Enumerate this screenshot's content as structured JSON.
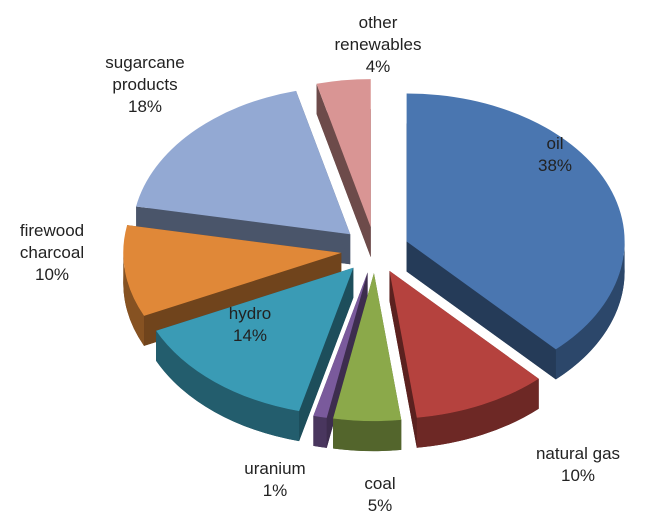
{
  "chart_data": {
    "type": "pie",
    "categories": [
      "oil",
      "natural gas",
      "coal",
      "uranium",
      "hydro",
      "firewood charcoal",
      "sugarcane products",
      "other renewables"
    ],
    "values": [
      38,
      10,
      5,
      1,
      14,
      10,
      18,
      4
    ],
    "value_labels": [
      "38%",
      "10%",
      "5%",
      "1%",
      "14%",
      "10%",
      "18%",
      "4%"
    ],
    "colors": [
      "#4a76b0",
      "#b5423e",
      "#8ba94a",
      "#7a5a9c",
      "#3a9bb5",
      "#e08838",
      "#93a9d3",
      "#d99594"
    ]
  }
}
